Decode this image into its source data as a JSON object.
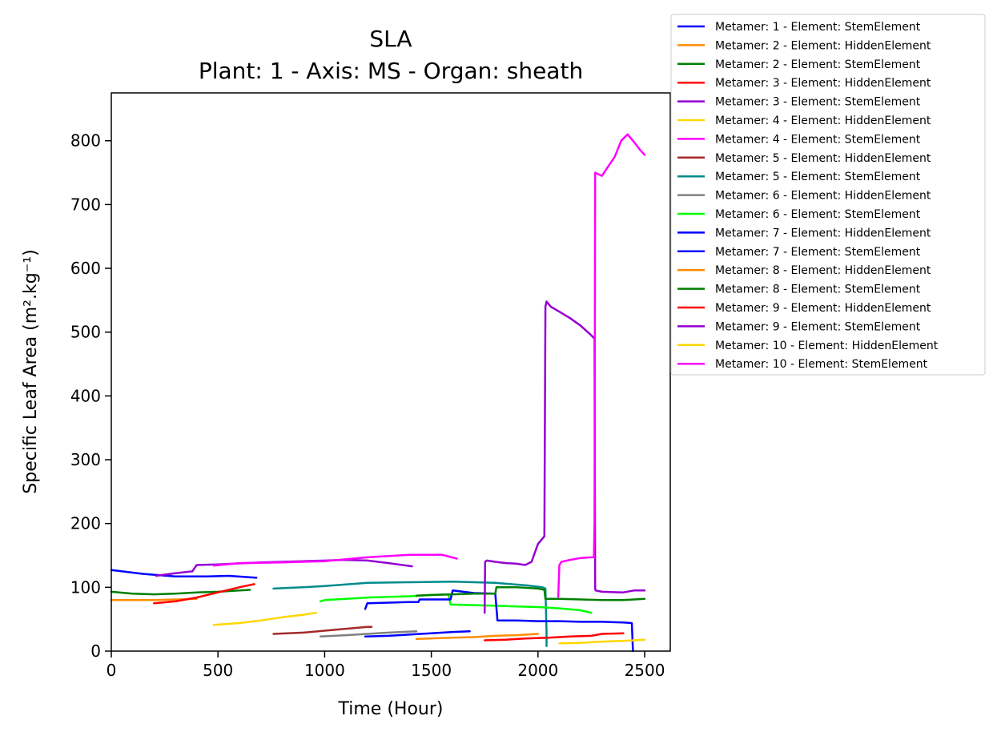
{
  "chart_data": {
    "type": "line",
    "title": "SLA",
    "subtitle": "Plant: 1 - Axis: MS - Organ: sheath",
    "xlabel": "Time (Hour)",
    "ylabel": "Specific Leaf Area (m².kg⁻¹)",
    "xlim": [
      0,
      2620
    ],
    "ylim": [
      0,
      875
    ],
    "xticks": [
      0,
      500,
      1000,
      1500,
      2000,
      2500
    ],
    "yticks": [
      0,
      100,
      200,
      300,
      400,
      500,
      600,
      700,
      800
    ],
    "grid": false,
    "legend_position": "outside-top-right",
    "series": [
      {
        "name": "Metamer: 1 - Element: StemElement",
        "color": "#0000ff",
        "x": [
          0,
          150,
          300,
          450,
          550,
          680
        ],
        "y": [
          127,
          121,
          117,
          117,
          118,
          115
        ]
      },
      {
        "name": "Metamer: 2 - Element: HiddenElement",
        "color": "#ff8c00",
        "x": [
          0,
          100,
          200,
          300,
          400
        ],
        "y": [
          80,
          80,
          80,
          81,
          82
        ]
      },
      {
        "name": "Metamer: 2 - Element: StemElement",
        "color": "#008000",
        "x": [
          0,
          100,
          200,
          300,
          400,
          500,
          600,
          650
        ],
        "y": [
          93,
          90,
          89,
          90,
          92,
          93,
          95,
          96
        ]
      },
      {
        "name": "Metamer: 3 - Element: HiddenElement",
        "color": "#ff0000",
        "x": [
          200,
          300,
          400,
          500,
          600,
          670
        ],
        "y": [
          75,
          78,
          84,
          92,
          100,
          105
        ]
      },
      {
        "name": "Metamer: 3 - Element: StemElement",
        "color": "#9400d3",
        "x": [
          210,
          300,
          380,
          400,
          500,
          700,
          900,
          1100,
          1200,
          1300,
          1410
        ],
        "y": [
          118,
          122,
          125,
          135,
          136,
          139,
          141,
          143,
          142,
          138,
          133
        ]
      },
      {
        "name": "Metamer: 4 - Element: HiddenElement",
        "color": "#ffd700",
        "x": [
          480,
          600,
          700,
          800,
          900,
          960
        ],
        "y": [
          41,
          44,
          48,
          53,
          57,
          60
        ]
      },
      {
        "name": "Metamer: 4 - Element: StemElement",
        "color": "#ff00ff",
        "x": [
          480,
          600,
          800,
          1000,
          1200,
          1400,
          1550,
          1620
        ],
        "y": [
          134,
          138,
          139,
          141,
          147,
          151,
          151,
          145
        ]
      },
      {
        "name": "Metamer: 5 - Element: HiddenElement",
        "color": "#a52a2a",
        "x": [
          760,
          900,
          1000,
          1100,
          1200,
          1220
        ],
        "y": [
          27,
          29,
          32,
          35,
          38,
          38
        ]
      },
      {
        "name": "Metamer: 5 - Element: StemElement",
        "color": "#008b8b",
        "x": [
          760,
          900,
          1000,
          1200,
          1400,
          1600,
          1800,
          1950,
          2020,
          2035,
          2040,
          2040
        ],
        "y": [
          98,
          100,
          102,
          107,
          108,
          109,
          107,
          103,
          100,
          98,
          30,
          8
        ]
      },
      {
        "name": "Metamer: 6 - Element: HiddenElement",
        "color": "#808080",
        "x": [
          980,
          1100,
          1200,
          1300,
          1430
        ],
        "y": [
          23,
          25,
          27,
          29,
          31
        ]
      },
      {
        "name": "Metamer: 6 - Element: StemElement",
        "color": "#00ff00",
        "x": [
          980,
          1000,
          1100,
          1200,
          1300,
          1400,
          1500,
          1580,
          1590,
          1700,
          1800,
          1900,
          2000,
          2100,
          2200,
          2250
        ],
        "y": [
          78,
          80,
          82,
          84,
          85,
          86,
          88,
          89,
          73,
          72,
          71,
          70,
          69,
          67,
          64,
          60
        ]
      },
      {
        "name": "Metamer: 7 - Element: HiddenElement",
        "color": "#0000ff",
        "x": [
          1190,
          1300,
          1400,
          1500,
          1600,
          1680
        ],
        "y": [
          23,
          24,
          26,
          28,
          30,
          31
        ]
      },
      {
        "name": "Metamer: 7 - Element: StemElement",
        "color": "#0000ff",
        "x": [
          1190,
          1200,
          1300,
          1400,
          1440,
          1445,
          1550,
          1590,
          1600,
          1700,
          1800,
          1810,
          1900,
          2000,
          2100,
          2200,
          2300,
          2400,
          2440,
          2445
        ],
        "y": [
          66,
          75,
          76,
          77,
          77,
          81,
          81,
          81,
          95,
          91,
          90,
          48,
          48,
          47,
          47,
          46,
          46,
          45,
          44,
          0
        ]
      },
      {
        "name": "Metamer: 8 - Element: HiddenElement",
        "color": "#ff8c00",
        "x": [
          1430,
          1500,
          1600,
          1700,
          1800,
          1900,
          2000
        ],
        "y": [
          19,
          20,
          21,
          22,
          24,
          25,
          27
        ]
      },
      {
        "name": "Metamer: 8 - Element: StemElement",
        "color": "#008000",
        "x": [
          1430,
          1500,
          1600,
          1700,
          1800,
          1805,
          1900,
          2000,
          2030,
          2035,
          2100,
          2200,
          2300,
          2400,
          2500
        ],
        "y": [
          87,
          88,
          89,
          90,
          90,
          100,
          100,
          98,
          96,
          82,
          82,
          81,
          80,
          80,
          82
        ]
      },
      {
        "name": "Metamer: 9 - Element: HiddenElement",
        "color": "#ff0000",
        "x": [
          1750,
          1850,
          1950,
          2050,
          2150,
          2250,
          2300,
          2400
        ],
        "y": [
          17,
          18,
          20,
          21,
          23,
          24,
          27,
          28
        ]
      },
      {
        "name": "Metamer: 9 - Element: StemElement",
        "color": "#9400d3",
        "x": [
          1750,
          1752,
          1760,
          1800,
          1850,
          1900,
          1940,
          1970,
          2000,
          2025,
          2030,
          2035,
          2040,
          2060,
          2100,
          2150,
          2200,
          2250,
          2265,
          2268,
          2270,
          2300,
          2400,
          2450,
          2500
        ],
        "y": [
          60,
          140,
          142,
          140,
          138,
          137,
          135,
          140,
          168,
          178,
          180,
          540,
          548,
          540,
          532,
          522,
          510,
          495,
          490,
          98,
          95,
          93,
          92,
          95,
          95
        ]
      },
      {
        "name": "Metamer: 10 - Element: HiddenElement",
        "color": "#ffd700",
        "x": [
          2100,
          2200,
          2300,
          2400,
          2500
        ],
        "y": [
          12,
          13,
          15,
          16,
          18
        ]
      },
      {
        "name": "Metamer: 10 - Element: StemElement",
        "color": "#ff00ff",
        "x": [
          2095,
          2100,
          2110,
          2150,
          2200,
          2250,
          2262,
          2265,
          2268,
          2300,
          2330,
          2360,
          2390,
          2420,
          2450,
          2480,
          2500
        ],
        "y": [
          85,
          135,
          140,
          143,
          146,
          147,
          147,
          200,
          750,
          745,
          760,
          775,
          800,
          810,
          798,
          785,
          778
        ]
      }
    ]
  }
}
